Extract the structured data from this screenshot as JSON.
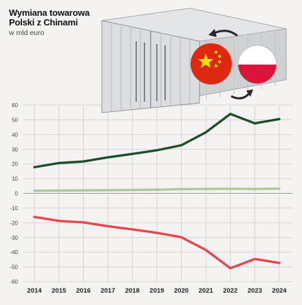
{
  "title_lines": [
    "Wymiana towarowa",
    "Polski z Chinami"
  ],
  "subtitle": "w mld euro",
  "colors": {
    "background": "#f4f3f1",
    "grid": "#d3d3d3",
    "series": [
      "#1e4d2b",
      "#a9c99a",
      "#e8454e"
    ],
    "container": "#d9dadb",
    "china_flag": "#de2910",
    "china_stars": "#ffde00",
    "poland_red": "#dc143c"
  },
  "illustration": {
    "type": "shipping-container",
    "flags": [
      "china-flag-icon",
      "poland-flag-icon"
    ],
    "arrows": "exchange-arrows-icon"
  },
  "chart_data": {
    "type": "line",
    "x": [
      "2014",
      "2015",
      "2016",
      "2017",
      "2018",
      "2019",
      "2020",
      "2021",
      "2022",
      "2023",
      "2024"
    ],
    "ylim": [
      -60,
      60
    ],
    "yticks": [
      60,
      50,
      40,
      30,
      20,
      10,
      0,
      -10,
      -20,
      -30,
      -40,
      -50,
      -60
    ],
    "grid": true,
    "series": [
      {
        "values": [
          17.8,
          20.6,
          21.7,
          24.5,
          26.8,
          29.3,
          32.7,
          41.5,
          54.0,
          47.6,
          50.5
        ]
      },
      {
        "values": [
          1.8,
          1.9,
          2.0,
          2.2,
          2.3,
          2.5,
          2.9,
          3.0,
          3.1,
          3.0,
          3.2
        ]
      },
      {
        "values": [
          -16.0,
          -18.7,
          -19.7,
          -22.3,
          -24.5,
          -26.8,
          -29.8,
          -38.5,
          -50.9,
          -44.6,
          -47.3
        ]
      }
    ]
  }
}
